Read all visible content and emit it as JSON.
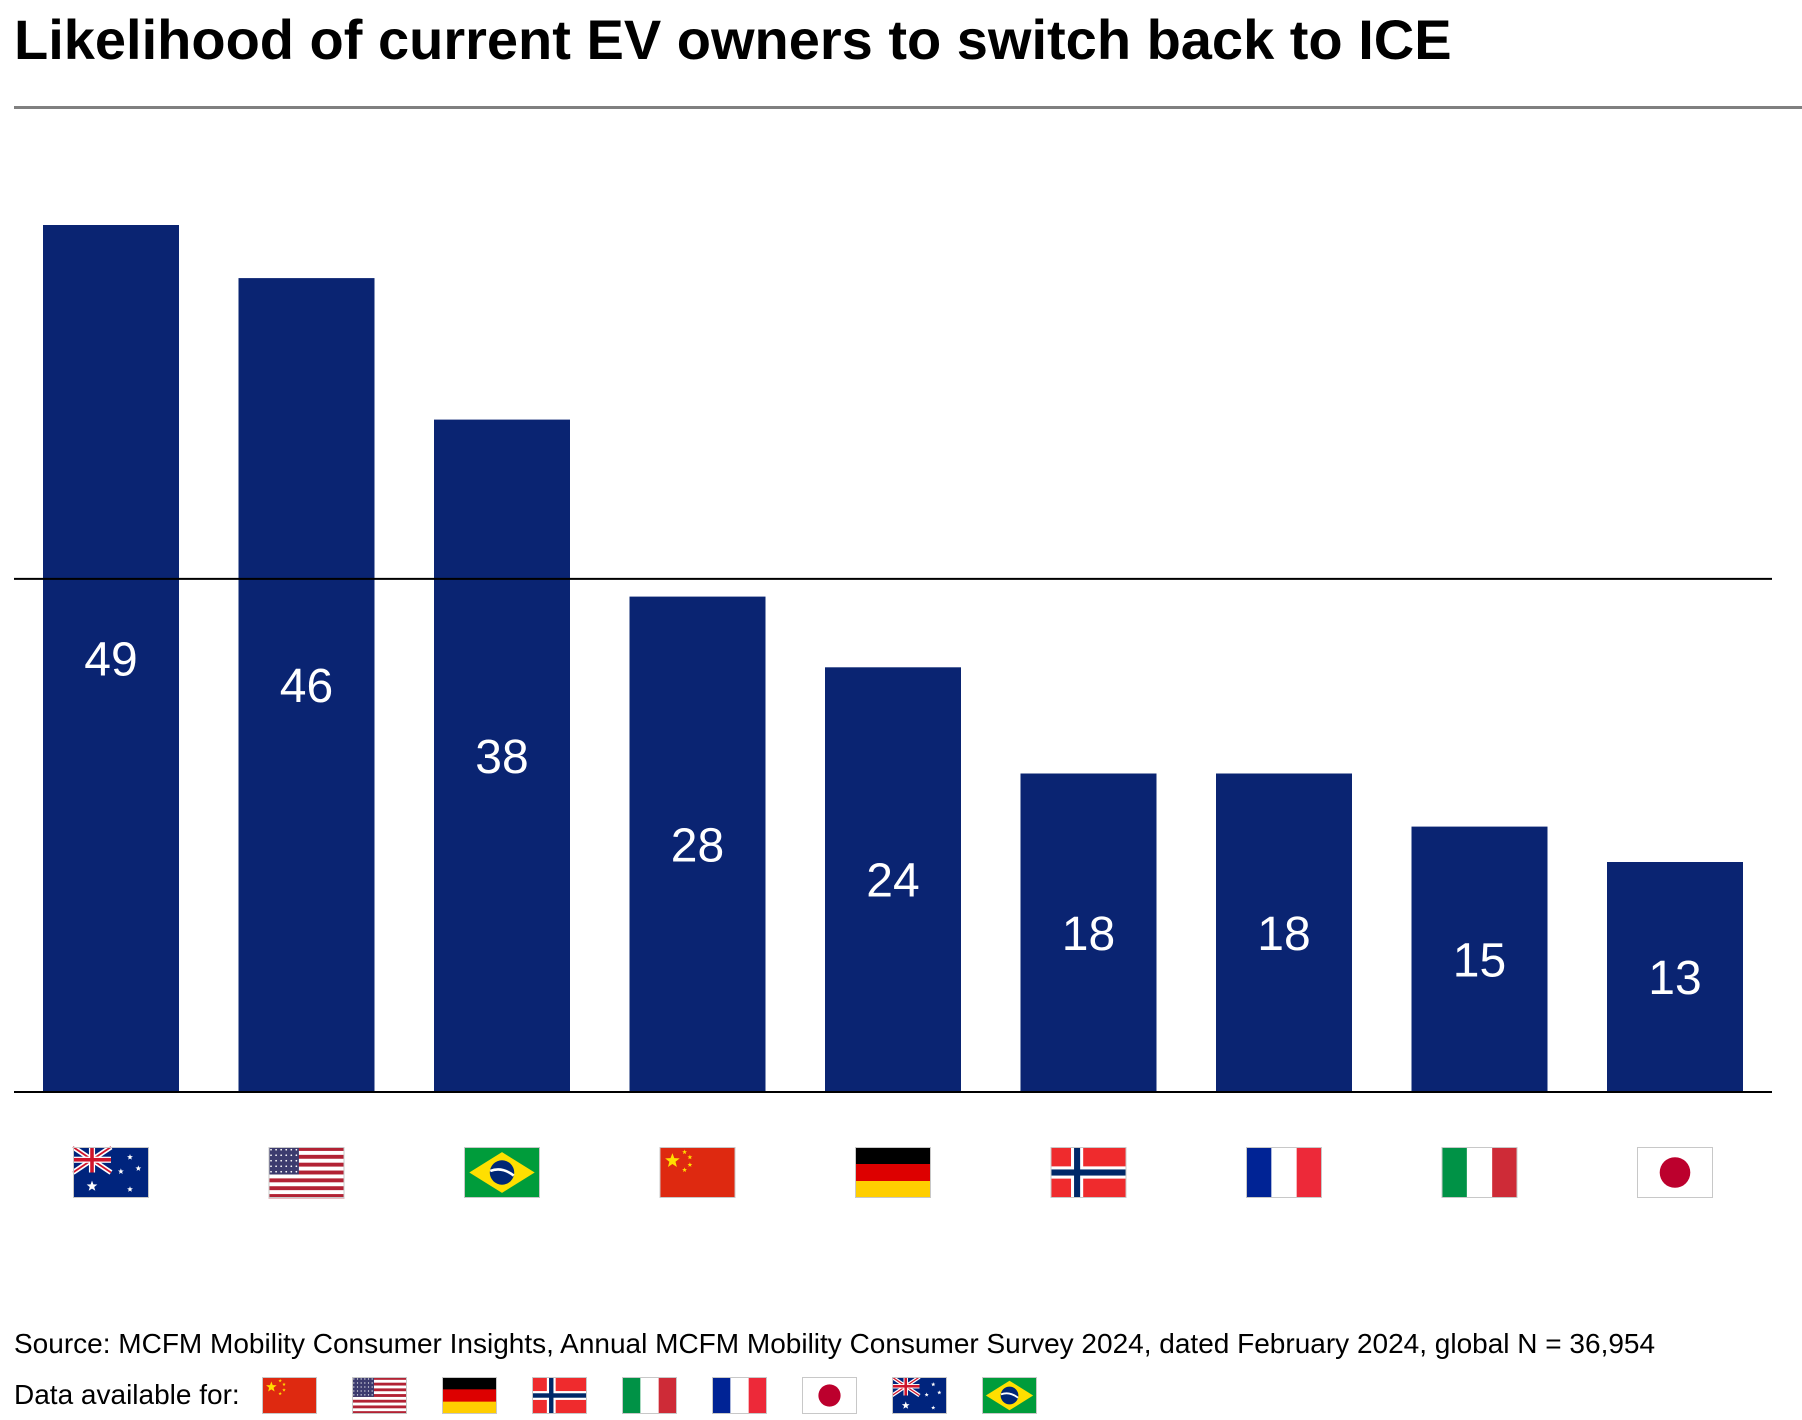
{
  "chart_data": {
    "type": "bar",
    "title": "Likelihood of current EV owners to switch back to ICE",
    "xlabel": "",
    "ylabel": "",
    "categories": [
      "Australia",
      "United States",
      "Brazil",
      "China",
      "Germany",
      "Norway",
      "France",
      "Italy",
      "Japan"
    ],
    "category_icons": [
      "flag-australia",
      "flag-usa",
      "flag-brazil",
      "flag-china",
      "flag-germany",
      "flag-norway",
      "flag-france",
      "flag-italy",
      "flag-japan"
    ],
    "values": [
      49,
      46,
      38,
      28,
      24,
      18,
      18,
      15,
      13
    ],
    "reference_line_value": 29,
    "ylim": [
      0,
      54
    ],
    "bar_color": "#0a2472",
    "grid": false,
    "legend": "none"
  },
  "footer": {
    "source": "Source: MCFM Mobility Consumer Insights, Annual MCFM Mobility Consumer Survey 2024, dated February 2024, global N = 36,954",
    "available_label": "Data available for:",
    "available_flags": [
      "flag-china",
      "flag-usa",
      "flag-germany",
      "flag-norway",
      "flag-italy",
      "flag-france",
      "flag-japan",
      "flag-australia",
      "flag-brazil"
    ]
  }
}
